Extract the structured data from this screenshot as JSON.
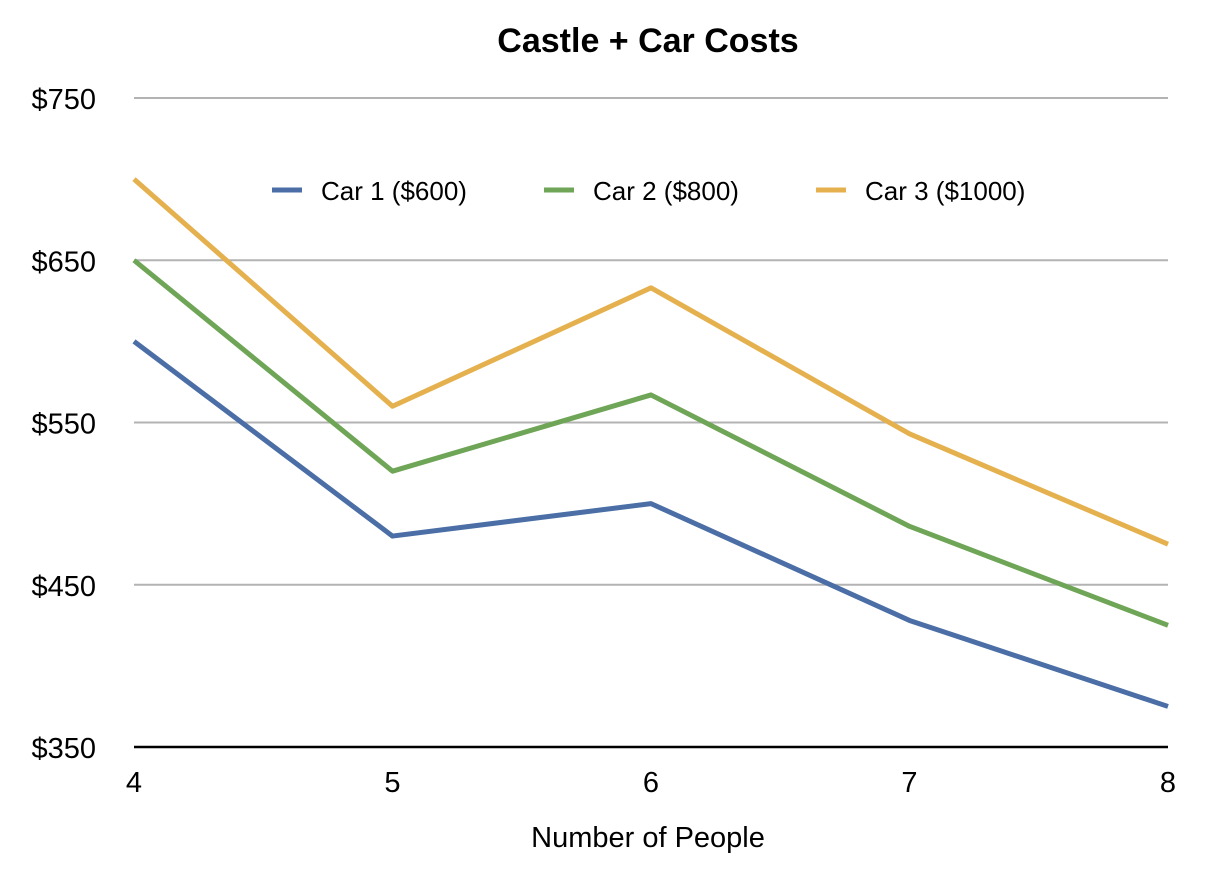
{
  "chart_data": {
    "type": "line",
    "title": "Castle + Car Costs",
    "xlabel": "Number of People",
    "ylabel": "",
    "x": [
      4,
      5,
      6,
      7,
      8
    ],
    "x_tick_labels": [
      "4",
      "5",
      "6",
      "7",
      "8"
    ],
    "ylim": [
      350,
      750
    ],
    "y_ticks": [
      350,
      450,
      550,
      650,
      750
    ],
    "y_tick_labels": [
      "$350",
      "$450",
      "$550",
      "$650",
      "$750"
    ],
    "grid": true,
    "legend_position": "top",
    "series": [
      {
        "name": "Car 1 ($600)",
        "color": "#4a6ea5",
        "values": [
          600,
          480,
          500,
          428,
          375
        ]
      },
      {
        "name": "Car 2 ($800)",
        "color": "#6fa556",
        "values": [
          650,
          520,
          567,
          486,
          425
        ]
      },
      {
        "name": "Car 3 ($1000)",
        "color": "#e5b14f",
        "values": [
          700,
          560,
          633,
          543,
          475
        ]
      }
    ]
  }
}
